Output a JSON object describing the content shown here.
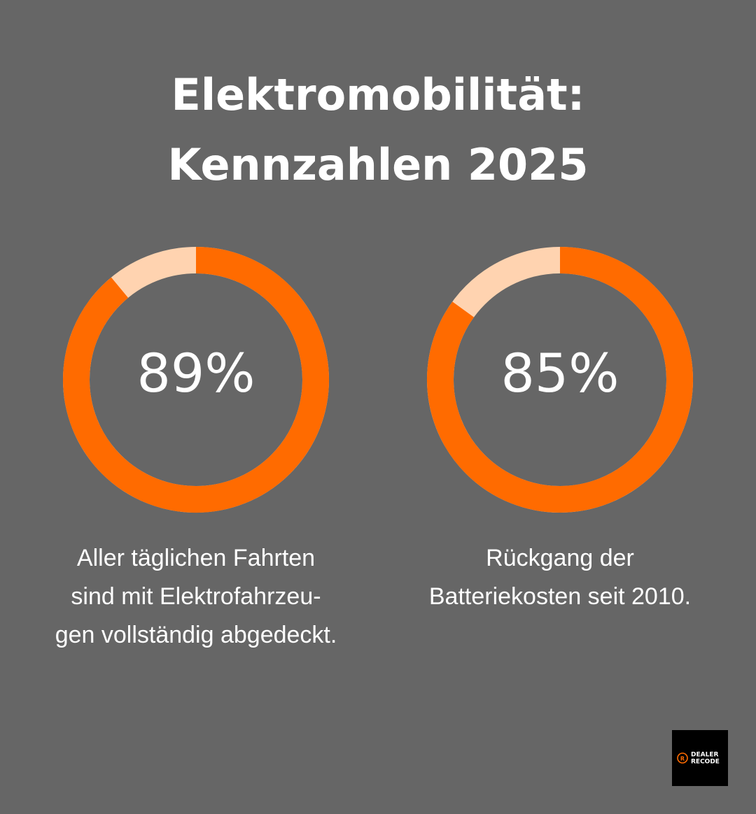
{
  "title": [
    "Elektromobilität:",
    "Kennzahlen 2025"
  ],
  "chart_data": [
    {
      "type": "donut",
      "values": [
        89
      ],
      "value_labels": [
        "89%"
      ],
      "ylim": [
        0,
        100
      ],
      "color": "#ff6b00",
      "rest_color": "#ffd3b0",
      "caption": [
        "Aller täglichen Fahrten",
        "sind mit Elektrofahrzeu-",
        "gen vollständig abgedeckt."
      ]
    },
    {
      "type": "donut",
      "values": [
        85
      ],
      "value_labels": [
        "85%"
      ],
      "ylim": [
        0,
        100
      ],
      "color": "#ff6b00",
      "rest_color": "#ffd3b0",
      "caption": [
        "Rückgang der",
        "Batteriekosten seit 2010."
      ]
    }
  ],
  "logo": [
    "DEALER",
    "RECODE"
  ]
}
